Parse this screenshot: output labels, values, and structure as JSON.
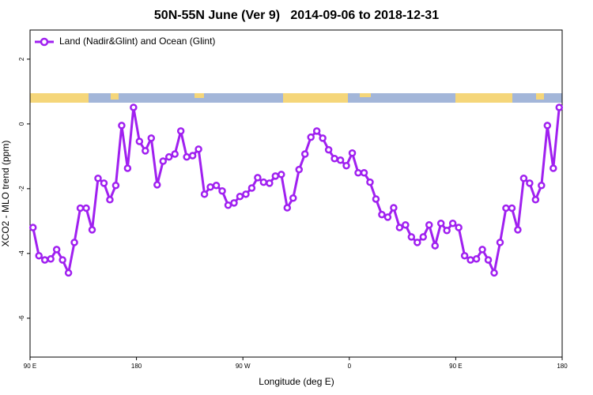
{
  "chart_data": {
    "type": "line",
    "title": "50N-55N June (Ver 9)   2014-09-06 to 2018-12-31",
    "xlabel": "Longitude (deg E)",
    "ylabel": "XCO2 - MLO trend (ppm)",
    "xlim": [
      90,
      540
    ],
    "ylim": [
      -7.2,
      2.9
    ],
    "xticks": [
      {
        "value": 90,
        "label": "90 E"
      },
      180,
      {
        "value": 270,
        "label": "90 W"
      },
      {
        "value": 360,
        "label": "0"
      },
      {
        "value": 450,
        "label": "90 E"
      },
      {
        "value": 540,
        "label": "180"
      }
    ],
    "yticks": [
      -6,
      -4,
      -2,
      0,
      2
    ],
    "legend": "top-left",
    "x": [
      92.5,
      97.5,
      102.5,
      107.5,
      112.5,
      117.5,
      122.5,
      127.5,
      132.5,
      137.5,
      142.5,
      147.5,
      152.5,
      157.5,
      162.5,
      167.5,
      172.5,
      177.5,
      182.5,
      187.5,
      192.5,
      197.5,
      202.5,
      207.5,
      212.5,
      217.5,
      222.5,
      227.5,
      232.5,
      237.5,
      242.5,
      247.5,
      252.5,
      257.5,
      262.5,
      267.5,
      272.5,
      277.5,
      282.5,
      287.5,
      292.5,
      297.5,
      302.5,
      307.5,
      312.5,
      317.5,
      322.5,
      327.5,
      332.5,
      337.5,
      342.5,
      347.5,
      352.5,
      357.5,
      362.5,
      367.5,
      372.5,
      377.5,
      382.5,
      387.5,
      392.5,
      397.5,
      402.5,
      407.5,
      412.5,
      417.5,
      422.5,
      427.5,
      432.5,
      437.5,
      442.5,
      447.5,
      452.5,
      457.5,
      462.5,
      467.5,
      472.5,
      477.5,
      482.5,
      487.5,
      492.5,
      497.5,
      502.5,
      507.5,
      512.5,
      517.5,
      522.5,
      527.5,
      532.5,
      537.5
    ],
    "series": [
      {
        "name": "Land (Nadir&Glint) and Ocean (Glint)",
        "color": "#a020f0",
        "values": [
          -3.2,
          -4.07,
          -4.2,
          -4.17,
          -3.88,
          -4.2,
          -4.6,
          -3.66,
          -2.6,
          -2.6,
          -3.27,
          -1.68,
          -1.83,
          -2.34,
          -1.9,
          -0.05,
          -1.37,
          0.51,
          -0.54,
          -0.83,
          -0.44,
          -1.88,
          -1.15,
          -1.02,
          -0.93,
          -0.22,
          -1.02,
          -0.98,
          -0.78,
          -2.17,
          -1.95,
          -1.9,
          -2.07,
          -2.51,
          -2.44,
          -2.24,
          -2.17,
          -1.98,
          -1.66,
          -1.8,
          -1.83,
          -1.61,
          -1.56,
          -2.59,
          -2.29,
          -1.41,
          -0.93,
          -0.41,
          -0.22,
          -0.44,
          -0.8,
          -1.07,
          -1.12,
          -1.29,
          -0.9,
          -1.51,
          -1.51,
          -1.8,
          -2.32,
          -2.8,
          -2.88,
          -2.59,
          -3.2,
          -3.12,
          -3.49,
          -3.66,
          -3.49,
          -3.12,
          -3.76,
          -3.07,
          -3.29,
          -3.07,
          -3.2,
          -4.07,
          -4.2,
          -4.17,
          -3.88,
          -4.2,
          -4.6,
          -3.66,
          -2.6,
          -2.6,
          -3.27,
          -1.68,
          -1.83,
          -2.34,
          -1.9,
          -0.05,
          -1.37,
          0.51
        ]
      }
    ]
  }
}
